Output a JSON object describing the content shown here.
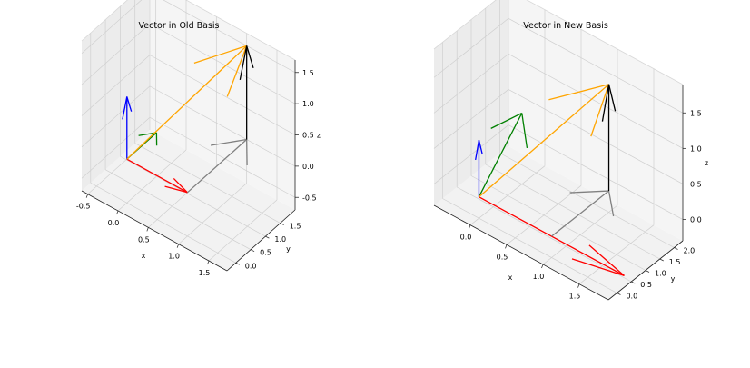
{
  "chart_data": [
    {
      "type": "3d-quiver",
      "title": "Vector in Old Basis",
      "xlabel": "x",
      "ylabel": "y",
      "zlabel": "z",
      "xlim": [
        -0.6,
        1.8
      ],
      "ylim": [
        -0.3,
        2.0
      ],
      "zlim": [
        -0.7,
        1.7
      ],
      "xticks": [
        "-0.5",
        "0.0",
        "0.5",
        "1.0",
        "1.5"
      ],
      "yticks": [
        "0.0",
        "0.5",
        "1.0",
        "1.5"
      ],
      "zticks": [
        "-0.5",
        "0.0",
        "0.5",
        "1.0",
        "1.5"
      ],
      "grid": true,
      "vectors": [
        {
          "color": "#ff0000",
          "origin": [
            0,
            0,
            0
          ],
          "direction": [
            1,
            0,
            0
          ]
        },
        {
          "color": "#008000",
          "origin": [
            0,
            0,
            0
          ],
          "direction": [
            0,
            1,
            0
          ]
        },
        {
          "color": "#0000ff",
          "origin": [
            0,
            0,
            0
          ],
          "direction": [
            0,
            0,
            1
          ]
        },
        {
          "color": "#ffa500",
          "origin": [
            0,
            0,
            0
          ],
          "direction": [
            1,
            2,
            1.5
          ]
        },
        {
          "color": "#808080",
          "origin": [
            1,
            0,
            0
          ],
          "direction": [
            0,
            2,
            0
          ]
        },
        {
          "color": "#000000",
          "origin": [
            1,
            2,
            0
          ],
          "direction": [
            0,
            0,
            1.5
          ]
        }
      ]
    },
    {
      "type": "3d-quiver",
      "title": "Vector in New Basis",
      "xlabel": "x",
      "ylabel": "y",
      "zlabel": "z",
      "xlim": [
        -0.5,
        1.9
      ],
      "ylim": [
        -0.3,
        2.3
      ],
      "zlim": [
        -0.3,
        1.9
      ],
      "xticks": [
        "0.0",
        "0.5",
        "1.0",
        "1.5"
      ],
      "yticks": [
        "0.0",
        "0.5",
        "1.0",
        "1.5",
        "2.0"
      ],
      "zticks": [
        "0.0",
        "0.5",
        "1.0",
        "1.5"
      ],
      "grid": true,
      "vectors": [
        {
          "color": "#ff0000",
          "origin": [
            0,
            0,
            0
          ],
          "direction": [
            2,
            0,
            0
          ]
        },
        {
          "color": "#008000",
          "origin": [
            0,
            0,
            0
          ],
          "direction": [
            0,
            1.5,
            0.7
          ]
        },
        {
          "color": "#0000ff",
          "origin": [
            0,
            0,
            0
          ],
          "direction": [
            0,
            0,
            0.8
          ]
        },
        {
          "color": "#ffa500",
          "origin": [
            0,
            0,
            0
          ],
          "direction": [
            1,
            2,
            1.5
          ]
        },
        {
          "color": "#808080",
          "origin": [
            1,
            0,
            0
          ],
          "direction": [
            0,
            2,
            0
          ]
        },
        {
          "color": "#000000",
          "origin": [
            1,
            2,
            0
          ],
          "direction": [
            0,
            0,
            1.5
          ]
        }
      ]
    }
  ]
}
